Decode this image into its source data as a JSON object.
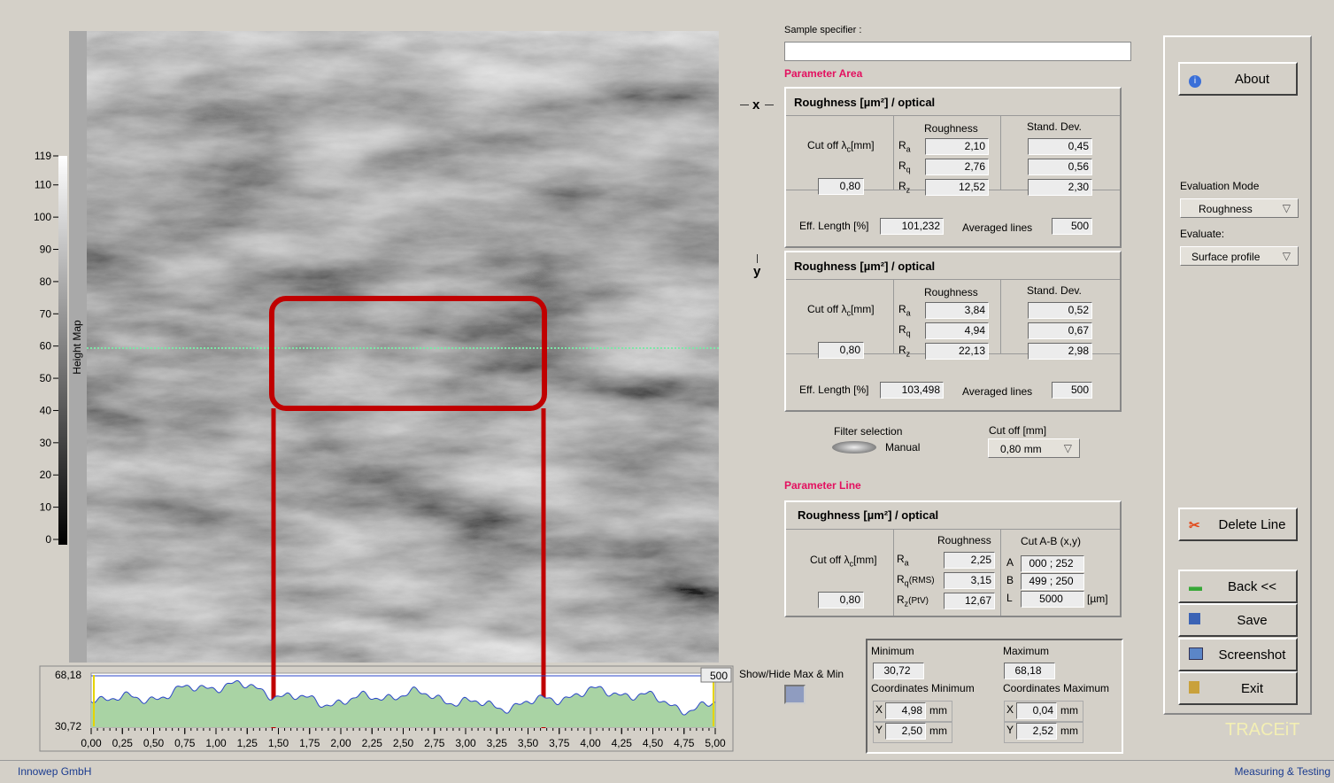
{
  "colorbar": {
    "label": "Height Map",
    "lim": [
      0,
      119
    ],
    "ticks": [
      0,
      10,
      20,
      30,
      40,
      50,
      60,
      70,
      80,
      90,
      100,
      110,
      119
    ]
  },
  "profile": {
    "ymax": "68,18",
    "ymin": "30,72",
    "points_field": "500",
    "xlim": [
      0,
      5
    ],
    "xticks": [
      {
        "value": 0,
        "label": "0,00"
      },
      {
        "value": 0.25,
        "label": "0,25"
      },
      {
        "value": 0.5,
        "label": "0,50"
      },
      {
        "value": 0.75,
        "label": "0,75"
      },
      {
        "value": 1,
        "label": "1,00"
      },
      {
        "value": 1.25,
        "label": "1,25"
      },
      {
        "value": 1.5,
        "label": "1,50"
      },
      {
        "value": 1.75,
        "label": "1,75"
      },
      {
        "value": 2,
        "label": "2,00"
      },
      {
        "value": 2.25,
        "label": "2,25"
      },
      {
        "value": 2.5,
        "label": "2,50"
      },
      {
        "value": 2.75,
        "label": "2,75"
      },
      {
        "value": 3,
        "label": "3,00"
      },
      {
        "value": 3.25,
        "label": "3,25"
      },
      {
        "value": 3.5,
        "label": "3,50"
      },
      {
        "value": 3.75,
        "label": "3,75"
      },
      {
        "value": 4,
        "label": "4,00"
      },
      {
        "value": 4.25,
        "label": "4,25"
      },
      {
        "value": 4.5,
        "label": "4,50"
      },
      {
        "value": 4.75,
        "label": "4,75"
      },
      {
        "value": 5,
        "label": "5,00"
      }
    ]
  },
  "show_hide_label": "Show/Hide Max & Min",
  "sample_specifier_label": "Sample specifier :",
  "parameter_area": {
    "title": "Parameter Area",
    "x": {
      "axis": "x",
      "title": "Roughness [µm²] / optical",
      "cutoff_label": [
        "Cut off λ",
        "c",
        "[mm]"
      ],
      "roughness_header": "Roughness",
      "sd_header": "Stand. Dev.",
      "params": [
        {
          "symbol": "R",
          "sub": "a",
          "roughness": "2,10",
          "sd": "0,45"
        },
        {
          "symbol": "R",
          "sub": "q",
          "roughness": "2,76",
          "sd": "0,56"
        },
        {
          "symbol": "R",
          "sub": "z",
          "roughness": "12,52",
          "sd": "2,30"
        }
      ],
      "cutoff": "0,80",
      "eff_length_label": "Eff. Length [%]",
      "eff_length": "101,232",
      "averaged_lines_label": "Averaged lines",
      "averaged_lines": "500"
    },
    "y": {
      "axis": "y",
      "title": "Roughness [µm²] / optical",
      "cutoff_label": [
        "Cut off λ",
        "c",
        "[mm]"
      ],
      "roughness_header": "Roughness",
      "sd_header": "Stand. Dev.",
      "params": [
        {
          "symbol": "R",
          "sub": "a",
          "roughness": "3,84",
          "sd": "0,52"
        },
        {
          "symbol": "R",
          "sub": "q",
          "roughness": "4,94",
          "sd": "0,67"
        },
        {
          "symbol": "R",
          "sub": "z",
          "roughness": "22,13",
          "sd": "2,98"
        }
      ],
      "cutoff": "0,80",
      "eff_length_label": "Eff. Length [%]",
      "eff_length": "103,498",
      "averaged_lines_label": "Averaged lines",
      "averaged_lines": "500"
    }
  },
  "filter": {
    "label": "Filter selection",
    "mode": "Manual",
    "cutoff_label": "Cut off  [mm]",
    "cutoff": "0,80 mm"
  },
  "parameter_line": {
    "title": "Parameter Line",
    "panel_title": "Roughness [µm²] / optical",
    "cutoff_label": [
      "Cut off λ",
      "c",
      "[mm]"
    ],
    "roughness_header": "Roughness",
    "cut_header": "Cut A-B  (x,y)",
    "params": [
      {
        "symbol": "R",
        "sub": "a",
        "roughness": "2,25"
      },
      {
        "symbol": "R",
        "sub": "q",
        "note": "(RMS)",
        "roughness": "3,15"
      },
      {
        "symbol": "R",
        "sub": "z",
        "note": "(PtV)",
        "roughness": "12,67"
      }
    ],
    "cut": [
      {
        "point": "A",
        "value": "000 ; 252"
      },
      {
        "point": "B",
        "value": "499 ; 250"
      },
      {
        "point": "L",
        "value": "5000"
      }
    ],
    "unit": "[µm]",
    "cutoff": "0,80"
  },
  "min_max": {
    "min_label": "Minimum",
    "min": "30,72",
    "max_label": "Maximum",
    "max": "68,18",
    "coord_min_label": "Coordinates Minimum",
    "coord_max_label": "Coordinates Maximum",
    "coord_min": [
      {
        "axis": "X",
        "value": "4,98",
        "unit": "mm"
      },
      {
        "axis": "Y",
        "value": "2,50",
        "unit": "mm"
      }
    ],
    "coord_max": [
      {
        "axis": "X",
        "value": "0,04",
        "unit": "mm"
      },
      {
        "axis": "Y",
        "value": "2,52",
        "unit": "mm"
      }
    ]
  },
  "sidebar": {
    "about": "About",
    "evaluation_mode_label": "Evaluation Mode",
    "evaluation_mode": "Roughness",
    "evaluate_label": "Evaluate:",
    "evaluate": "Surface profile",
    "delete_line": "Delete Line",
    "back": "Back <<",
    "save": "Save",
    "screenshot": "Screenshot",
    "exit": "Exit",
    "brand": "TRACEiT"
  },
  "footer": {
    "left": "Innowep GmbH",
    "right": "Measuring & Testing"
  }
}
